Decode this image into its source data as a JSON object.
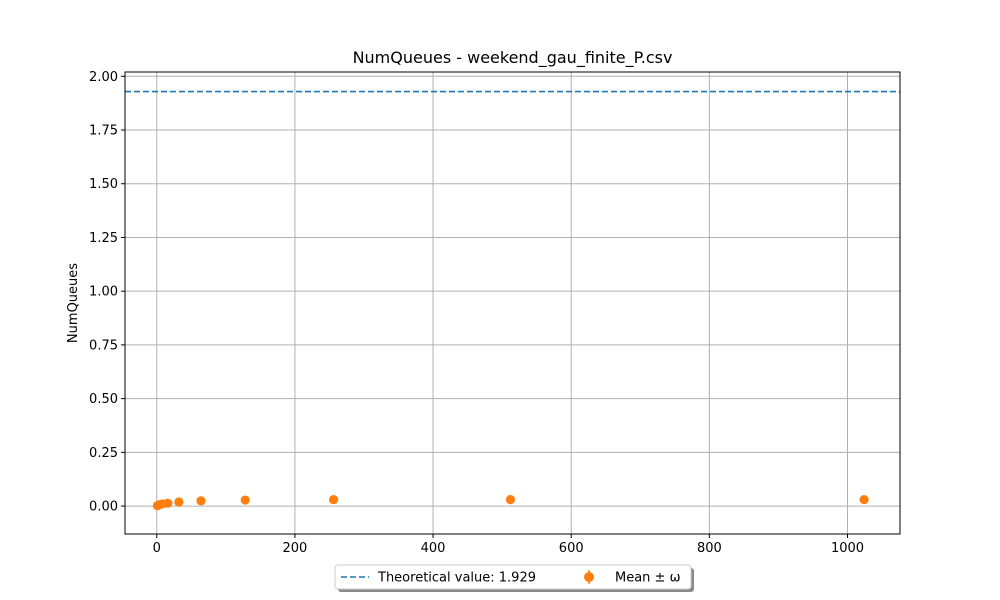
{
  "chart_data": {
    "type": "scatter",
    "title": "NumQueues - weekend_gau_finite_P.csv",
    "xlabel": "",
    "ylabel": "NumQueues",
    "xlim": [
      -46,
      1076
    ],
    "ylim": [
      -0.13,
      2.02
    ],
    "xticks": [
      0,
      200,
      400,
      600,
      800,
      1000
    ],
    "xtick_labels": [
      "0",
      "200",
      "400",
      "600",
      "800",
      "1000"
    ],
    "yticks": [
      0.0,
      0.25,
      0.5,
      0.75,
      1.0,
      1.25,
      1.5,
      1.75,
      2.0
    ],
    "ytick_labels": [
      "0.00",
      "0.25",
      "0.50",
      "0.75",
      "1.00",
      "1.25",
      "1.50",
      "1.75",
      "2.00"
    ],
    "grid": true,
    "legend_position": "bottom-center-outside",
    "series": [
      {
        "name": "Mean ± ω",
        "kind": "errorbar",
        "color": "#ff7f0e",
        "x": [
          1,
          2,
          4,
          8,
          16,
          32,
          64,
          128,
          256,
          512,
          1024
        ],
        "y": [
          0.002,
          0.004,
          0.007,
          0.01,
          0.013,
          0.019,
          0.024,
          0.028,
          0.03,
          0.03,
          0.03
        ]
      }
    ],
    "reference_lines": [
      {
        "name": "Theoretical value: 1.929",
        "value": 1.929,
        "style": "dashed",
        "color": "#1f77b4"
      }
    ]
  }
}
